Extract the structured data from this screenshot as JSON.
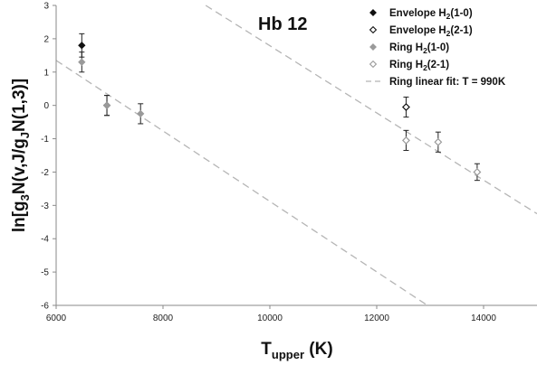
{
  "chart_data": {
    "type": "scatter",
    "xlabel": "T",
    "xlabel_sub": "upper",
    "xlabel_unit": " (K)",
    "ylabel_parts": [
      "ln[g",
      "3",
      "N(v,J/g",
      "J",
      "N(1,3)]"
    ],
    "annotation": "Hb 12",
    "xlim": [
      6000,
      15000
    ],
    "ylim": [
      -6,
      3
    ],
    "xticks": [
      6000,
      8000,
      10000,
      12000,
      14000
    ],
    "yticks": [
      3,
      2,
      1,
      0,
      -1,
      -2,
      -3,
      -4,
      -5,
      -6
    ],
    "grid": false,
    "legend_position": "top-right",
    "colors": {
      "dark": "#111111",
      "grey": "#9a9a9a",
      "fit": "#b5b5b5"
    },
    "legend": [
      {
        "key": "env10",
        "prefix": "Envelope H",
        "sub": "2",
        "suffix": "(1-0)",
        "marker": "filled-diamond",
        "color": "#111111"
      },
      {
        "key": "env21",
        "prefix": "Envelope H",
        "sub": "2",
        "suffix": "(2-1)",
        "marker": "open-diamond",
        "color": "#111111"
      },
      {
        "key": "ring10",
        "prefix": "Ring H",
        "sub": "2",
        "suffix": "(1-0)",
        "marker": "filled-diamond",
        "color": "#9a9a9a"
      },
      {
        "key": "ring21",
        "prefix": "Ring H",
        "sub": "2",
        "suffix": "(2-1)",
        "marker": "open-diamond",
        "color": "#9a9a9a"
      },
      {
        "key": "fit",
        "text": "Ring linear fit: T = 990K",
        "marker": "dashed-line",
        "color": "#b5b5b5"
      }
    ],
    "series": [
      {
        "name": "Envelope H2(1-0)",
        "marker": "filled-diamond",
        "color": "#111111",
        "points": [
          {
            "x": 6480,
            "y": 1.8,
            "err": 0.35
          },
          {
            "x": 6950,
            "y": 0.0,
            "err": 0.3
          }
        ]
      },
      {
        "name": "Envelope H2(2-1)",
        "marker": "open-diamond",
        "color": "#111111",
        "points": [
          {
            "x": 12550,
            "y": -0.05,
            "err": 0.3
          }
        ]
      },
      {
        "name": "Ring H2(1-0)",
        "marker": "filled-diamond",
        "color": "#9a9a9a",
        "points": [
          {
            "x": 6480,
            "y": 1.3,
            "err": 0.3
          },
          {
            "x": 6950,
            "y": 0.0,
            "err": 0.3
          },
          {
            "x": 7580,
            "y": -0.25,
            "err": 0.3
          }
        ]
      },
      {
        "name": "Ring H2(2-1)",
        "marker": "open-diamond",
        "color": "#9a9a9a",
        "points": [
          {
            "x": 12550,
            "y": -1.05,
            "err": 0.3
          },
          {
            "x": 13150,
            "y": -1.1,
            "err": 0.3
          },
          {
            "x": 13880,
            "y": -2.0,
            "err": 0.25
          }
        ]
      }
    ],
    "fit_lines": [
      {
        "x": [
          6000,
          12950
        ],
        "y": [
          1.35,
          -6.0
        ]
      },
      {
        "x": [
          8800,
          15000
        ],
        "y": [
          3.0,
          -3.25
        ]
      }
    ]
  }
}
